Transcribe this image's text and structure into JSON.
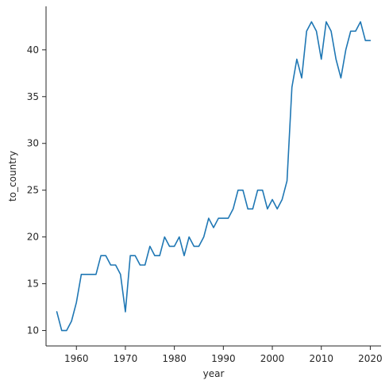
{
  "chart_data": {
    "type": "line",
    "title": "",
    "xlabel": "year",
    "ylabel": "to_country",
    "xlim": [
      1953.8,
      2022.2
    ],
    "ylim": [
      8.35,
      44.65
    ],
    "xticks": [
      1960,
      1970,
      1980,
      1990,
      2000,
      2010,
      2020
    ],
    "yticks": [
      10,
      15,
      20,
      25,
      30,
      35,
      40
    ],
    "grid": false,
    "legend": "none",
    "color": "#1f77b4",
    "series": [
      {
        "x": [
          1956,
          1957,
          1958,
          1959,
          1960,
          1961,
          1962,
          1963,
          1964,
          1965,
          1966,
          1967,
          1968,
          1969,
          1970,
          1971,
          1972,
          1973,
          1974,
          1975,
          1976,
          1977,
          1978,
          1979,
          1980,
          1981,
          1982,
          1983,
          1984,
          1985,
          1986,
          1987,
          1988,
          1989,
          1990,
          1991,
          1992,
          1993,
          1994,
          1995,
          1996,
          1997,
          1998,
          1999,
          2000,
          2001,
          2002,
          2003,
          2004,
          2005,
          2006,
          2007,
          2008,
          2009,
          2010,
          2011,
          2012,
          2013,
          2014,
          2015,
          2016,
          2017,
          2018,
          2019,
          2020
        ],
        "y": [
          12,
          10,
          10,
          11,
          13,
          16,
          16,
          16,
          16,
          18,
          18,
          17,
          17,
          16,
          12,
          18,
          18,
          17,
          17,
          19,
          18,
          18,
          20,
          19,
          19,
          20,
          18,
          20,
          19,
          19,
          20,
          22,
          21,
          22,
          22,
          22,
          23,
          25,
          25,
          23,
          23,
          25,
          25,
          23,
          24,
          23,
          24,
          26,
          36,
          39,
          37,
          42,
          43,
          42,
          39,
          43,
          42,
          39,
          37,
          40,
          42,
          42,
          43,
          41,
          41
        ]
      }
    ]
  }
}
